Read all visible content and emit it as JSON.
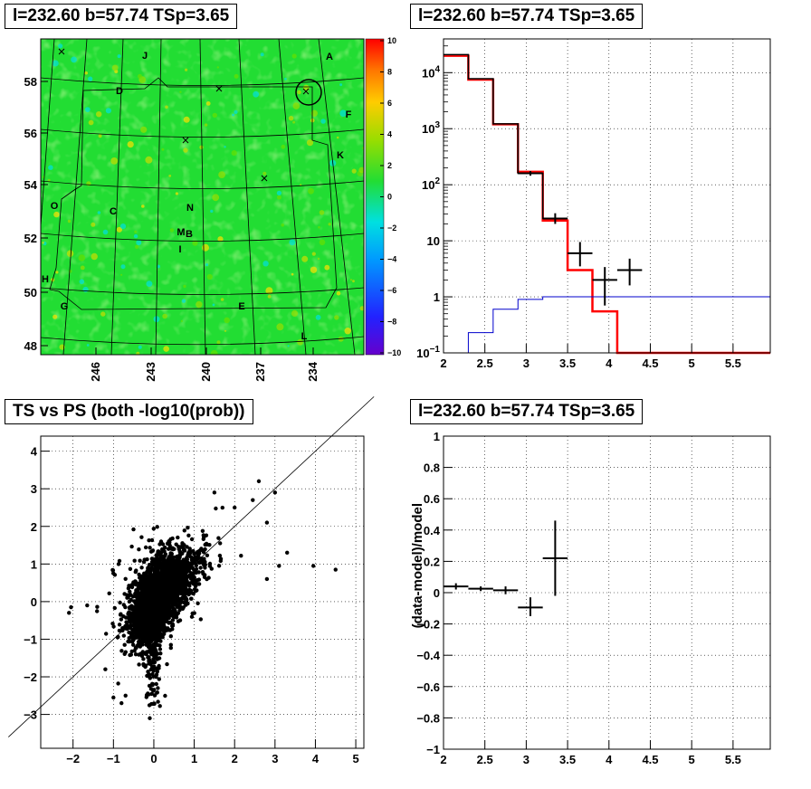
{
  "chart_data": [
    {
      "type": "heatmap",
      "title": "l=232.60 b=57.74 TSp=3.65",
      "x_tick_labels": [
        "246",
        "243",
        "240",
        "237",
        "234"
      ],
      "y_tick_labels": [
        "48",
        "50",
        "52",
        "54",
        "56",
        "58"
      ],
      "colorbar_ticks": [
        "10",
        "8",
        "6",
        "4",
        "2",
        "0",
        "−2",
        "−4",
        "−6",
        "−8",
        "−10"
      ],
      "zlim": [
        -10,
        10
      ],
      "grid": true,
      "region_labels": [
        "A",
        "B",
        "C",
        "D",
        "E",
        "F",
        "G",
        "H",
        "I",
        "J",
        "K",
        "L",
        "M",
        "N",
        "O"
      ],
      "colors": {
        "background_field": "#22dd33",
        "palette_high": "#ff0000",
        "palette_low": "#6600cc"
      }
    },
    {
      "type": "line",
      "title": "l=232.60 b=57.74 TSp=3.65",
      "x_tick_labels": [
        "2",
        "2.5",
        "3",
        "3.5",
        "4",
        "4.5",
        "5",
        "5.5"
      ],
      "y_tick_labels": [
        "10^−1",
        "1",
        "10",
        "10^2",
        "10^3",
        "10^4"
      ],
      "xlim": [
        2,
        5.95
      ],
      "ylim": [
        0.1,
        40000
      ],
      "yscale": "log",
      "grid": true,
      "series": [
        {
          "color": "#ff0000",
          "style": "histogram",
          "edges": [
            2.0,
            2.3,
            2.6,
            2.9,
            3.2,
            3.5,
            3.8,
            4.1,
            4.4,
            5.95
          ],
          "values": [
            20000,
            7500,
            1200,
            170,
            23,
            3,
            0.55,
            0.1,
            0.1
          ]
        },
        {
          "color": "#000000",
          "style": "histogram",
          "edges": [
            2.0,
            2.3,
            2.6,
            2.9,
            3.2,
            3.5
          ],
          "values": [
            21000,
            7800,
            1220,
            160,
            25
          ]
        },
        {
          "color": "#0000cc",
          "style": "histogram",
          "edges": [
            2.0,
            2.3,
            2.6,
            2.9,
            3.2,
            5.95
          ],
          "values": [
            0.1,
            0.23,
            0.6,
            0.9,
            1.0
          ]
        },
        {
          "color": "#000000",
          "style": "errorbars",
          "points": [
            {
              "x": 3.05,
              "xerr": 0.15,
              "y": 160,
              "ylo": 145,
              "yhi": 175
            },
            {
              "x": 3.35,
              "xerr": 0.15,
              "y": 25,
              "ylo": 20,
              "yhi": 31
            },
            {
              "x": 3.65,
              "xerr": 0.15,
              "y": 6,
              "ylo": 3.5,
              "yhi": 9.5
            },
            {
              "x": 3.95,
              "xerr": 0.15,
              "y": 2,
              "ylo": 0.7,
              "yhi": 3.4
            },
            {
              "x": 4.25,
              "xerr": 0.15,
              "y": 3,
              "ylo": 1.6,
              "yhi": 4.8
            }
          ]
        }
      ]
    },
    {
      "type": "scatter",
      "title": "TS vs PS (both -log10(prob))",
      "x_tick_labels": [
        "−2",
        "−1",
        "0",
        "1",
        "2",
        "3",
        "4",
        "5"
      ],
      "y_tick_labels": [
        "−3",
        "−2",
        "−1",
        "0",
        "1",
        "2",
        "3",
        "4"
      ],
      "xlim": [
        -2.8,
        5.2
      ],
      "ylim": [
        -3.9,
        4.4
      ],
      "grid": true,
      "reference_line": {
        "slope": 1,
        "intercept": 0
      },
      "outliers": [
        [
          4.5,
          0.85
        ],
        [
          3.95,
          0.95
        ],
        [
          3.3,
          1.3
        ],
        [
          3.1,
          0.95
        ],
        [
          2.8,
          2.1
        ],
        [
          3.0,
          2.9
        ],
        [
          2.6,
          3.2
        ],
        [
          2.45,
          2.7
        ],
        [
          2.8,
          0.6
        ],
        [
          -2.1,
          -0.3
        ],
        [
          -2.05,
          -0.15
        ],
        [
          -1.65,
          -0.1
        ],
        [
          -1.2,
          -1.8
        ],
        [
          -1.0,
          -2.55
        ],
        [
          -0.8,
          -2.7
        ],
        [
          -0.7,
          -2.5
        ],
        [
          -0.1,
          -3.1
        ],
        [
          0.1,
          -2.3
        ],
        [
          1.5,
          2.9
        ],
        [
          2.0,
          2.5
        ]
      ],
      "bulk_point_count": 3200
    },
    {
      "type": "line",
      "title": "l=232.60 b=57.74 TSp=3.65",
      "ylabel": "(data-model)/model",
      "x_tick_labels": [
        "2",
        "2.5",
        "3",
        "3.5",
        "4",
        "4.5",
        "5",
        "5.5"
      ],
      "y_tick_labels": [
        "−1",
        "−0.8",
        "−0.6",
        "−0.4",
        "−0.2",
        "0",
        "0.2",
        "0.4",
        "0.6",
        "0.8",
        "1"
      ],
      "xlim": [
        2,
        5.95
      ],
      "ylim": [
        -1,
        1
      ],
      "grid": true,
      "series": [
        {
          "color": "#000000",
          "style": "errorbars",
          "points": [
            {
              "x": 2.15,
              "xerr": 0.15,
              "y": 0.04,
              "ylo": 0.02,
              "yhi": 0.06
            },
            {
              "x": 2.45,
              "xerr": 0.15,
              "y": 0.025,
              "ylo": 0.01,
              "yhi": 0.04
            },
            {
              "x": 2.75,
              "xerr": 0.15,
              "y": 0.015,
              "ylo": -0.01,
              "yhi": 0.04
            },
            {
              "x": 3.05,
              "xerr": 0.15,
              "y": -0.095,
              "ylo": -0.15,
              "yhi": -0.03
            },
            {
              "x": 3.35,
              "xerr": 0.15,
              "y": 0.22,
              "ylo": -0.02,
              "yhi": 0.46
            }
          ]
        }
      ]
    }
  ]
}
